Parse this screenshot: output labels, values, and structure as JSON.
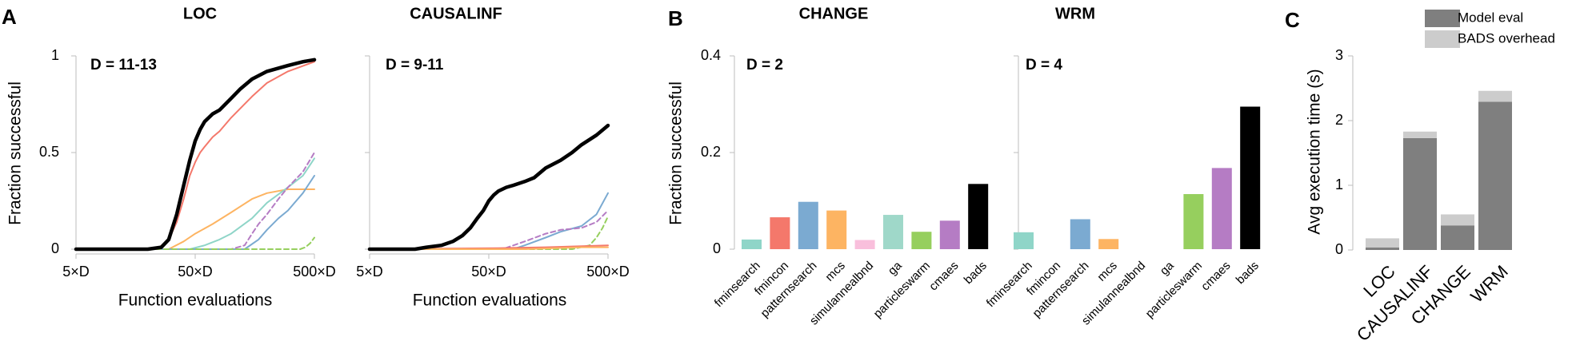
{
  "panels": {
    "A": "A",
    "B": "B",
    "C": "C"
  },
  "colors": {
    "fminsearch": "#8fd5c8",
    "fmincon": "#f4786b",
    "patternsearch": "#7baad1",
    "mcs": "#fdb462",
    "simulannealbnd": "#f9bfdc",
    "ga": "#9fd8c9",
    "particleswarm": "#96cf5e",
    "cmaes": "#b57cc4",
    "bads": "#000000",
    "model_eval": "#7f7f7f",
    "bads_overhead": "#cccccc"
  },
  "chart_data": [
    {
      "id": "A1",
      "type": "line",
      "title": "LOC",
      "annotation": "D = 11-13",
      "xlabel": "Function evaluations",
      "ylabel": "Fraction successful",
      "xscale": "log",
      "xlim": [
        5,
        500
      ],
      "ylim": [
        0,
        1
      ],
      "xticks": [
        "5×D",
        "50×D",
        "500×D"
      ],
      "yticks": [
        "0",
        "0.5",
        "1"
      ],
      "series": [
        {
          "key": "bads",
          "dash": false,
          "x": [
            5,
            20,
            26,
            30,
            35,
            40,
            45,
            50,
            55,
            60,
            70,
            80,
            100,
            120,
            150,
            200,
            300,
            400,
            500
          ],
          "y": [
            0,
            0,
            0.01,
            0.05,
            0.18,
            0.33,
            0.46,
            0.56,
            0.62,
            0.66,
            0.7,
            0.72,
            0.78,
            0.83,
            0.88,
            0.92,
            0.95,
            0.97,
            0.98
          ]
        },
        {
          "key": "fmincon",
          "dash": false,
          "x": [
            5,
            24,
            30,
            35,
            40,
            45,
            50,
            55,
            60,
            70,
            80,
            100,
            150,
            200,
            300,
            500
          ],
          "y": [
            0,
            0,
            0.05,
            0.14,
            0.26,
            0.38,
            0.45,
            0.5,
            0.53,
            0.58,
            0.61,
            0.68,
            0.79,
            0.86,
            0.92,
            0.97
          ]
        },
        {
          "key": "mcs",
          "dash": false,
          "x": [
            5,
            30,
            40,
            50,
            70,
            100,
            150,
            200,
            300,
            500
          ],
          "y": [
            0,
            0,
            0.04,
            0.08,
            0.13,
            0.19,
            0.26,
            0.29,
            0.31,
            0.31
          ]
        },
        {
          "key": "fminsearch",
          "dash": false,
          "x": [
            5,
            45,
            60,
            80,
            100,
            150,
            200,
            300,
            400,
            500
          ],
          "y": [
            0,
            0,
            0.02,
            0.05,
            0.08,
            0.16,
            0.24,
            0.32,
            0.38,
            0.47
          ]
        },
        {
          "key": "patternsearch",
          "dash": false,
          "x": [
            5,
            130,
            170,
            200,
            250,
            300,
            400,
            500
          ],
          "y": [
            0,
            0,
            0.05,
            0.1,
            0.16,
            0.2,
            0.29,
            0.38
          ]
        },
        {
          "key": "cmaes",
          "dash": true,
          "x": [
            5,
            100,
            130,
            150,
            170,
            200,
            250,
            300,
            400,
            500
          ],
          "y": [
            0,
            0,
            0.02,
            0.08,
            0.13,
            0.18,
            0.26,
            0.32,
            0.4,
            0.5
          ]
        },
        {
          "key": "particleswarm",
          "dash": true,
          "x": [
            5,
            380,
            420,
            460,
            500
          ],
          "y": [
            0,
            0,
            0.01,
            0.03,
            0.06
          ]
        }
      ]
    },
    {
      "id": "A2",
      "type": "line",
      "title": "CAUSALINF",
      "annotation": "D = 9-11",
      "xlabel": "Function evaluations",
      "ylabel": "",
      "xscale": "log",
      "xlim": [
        5,
        500
      ],
      "ylim": [
        0,
        1
      ],
      "xticks": [
        "5×D",
        "50×D",
        "500×D"
      ],
      "yticks": [],
      "series": [
        {
          "key": "bads",
          "dash": false,
          "x": [
            5,
            12,
            15,
            20,
            25,
            30,
            35,
            40,
            45,
            50,
            55,
            60,
            70,
            80,
            100,
            120,
            150,
            200,
            250,
            300,
            400,
            500
          ],
          "y": [
            0,
            0,
            0.01,
            0.02,
            0.04,
            0.07,
            0.11,
            0.16,
            0.2,
            0.25,
            0.28,
            0.3,
            0.32,
            0.33,
            0.35,
            0.37,
            0.42,
            0.46,
            0.5,
            0.54,
            0.59,
            0.64
          ]
        },
        {
          "key": "patternsearch",
          "dash": false,
          "x": [
            5,
            80,
            100,
            150,
            200,
            300,
            400,
            500
          ],
          "y": [
            0,
            0,
            0.02,
            0.06,
            0.09,
            0.12,
            0.18,
            0.29
          ]
        },
        {
          "key": "cmaes",
          "dash": true,
          "x": [
            5,
            65,
            100,
            150,
            200,
            300,
            400,
            500
          ],
          "y": [
            0,
            0,
            0.04,
            0.08,
            0.1,
            0.11,
            0.14,
            0.2
          ]
        },
        {
          "key": "particleswarm",
          "dash": true,
          "x": [
            5,
            250,
            350,
            400,
            450,
            500
          ],
          "y": [
            0,
            0,
            0.02,
            0.06,
            0.11,
            0.17
          ]
        },
        {
          "key": "fmincon",
          "dash": false,
          "x": [
            5,
            60,
            150,
            500
          ],
          "y": [
            0,
            0.005,
            0.01,
            0.02
          ]
        },
        {
          "key": "mcs",
          "dash": false,
          "x": [
            5,
            100,
            300,
            500
          ],
          "y": [
            0,
            0,
            0.01,
            0.01
          ]
        }
      ]
    },
    {
      "id": "B1",
      "type": "bar",
      "title": "CHANGE",
      "annotation": "D = 2",
      "ylabel": "Fraction successful",
      "ylim": [
        0,
        0.4
      ],
      "yticks": [
        "0",
        "0.2",
        "0.4"
      ],
      "categories": [
        "fminsearch",
        "fmincon",
        "patternsearch",
        "mcs",
        "simulannealbnd",
        "ga",
        "particleswarm",
        "cmaes",
        "bads"
      ],
      "values": [
        0.02,
        0.066,
        0.098,
        0.08,
        0.019,
        0.071,
        0.036,
        0.059,
        0.135
      ]
    },
    {
      "id": "B2",
      "type": "bar",
      "title": "WRM",
      "annotation": "D = 4",
      "ylabel": "",
      "ylim": [
        0,
        0.4
      ],
      "yticks": [],
      "categories": [
        "fminsearch",
        "fmincon",
        "patternsearch",
        "mcs",
        "simulannealbnd",
        "ga",
        "particleswarm",
        "cmaes",
        "bads"
      ],
      "values": [
        0.035,
        0,
        0.062,
        0.021,
        0,
        0,
        0.114,
        0.168,
        0.295
      ]
    },
    {
      "id": "C",
      "type": "bar",
      "stacked": true,
      "title": "",
      "ylabel": "Avg execution time (s)",
      "ylim": [
        0,
        3
      ],
      "yticks": [
        "0",
        "1",
        "2",
        "3"
      ],
      "categories": [
        "LOC",
        "CAUSALINF",
        "CHANGE",
        "WRM"
      ],
      "series": [
        {
          "name": "Model eval",
          "values": [
            0.04,
            1.73,
            0.38,
            2.29
          ]
        },
        {
          "name": "BADS overhead",
          "values": [
            0.14,
            0.1,
            0.17,
            0.17
          ]
        }
      ],
      "legend_position": "top-right"
    }
  ]
}
